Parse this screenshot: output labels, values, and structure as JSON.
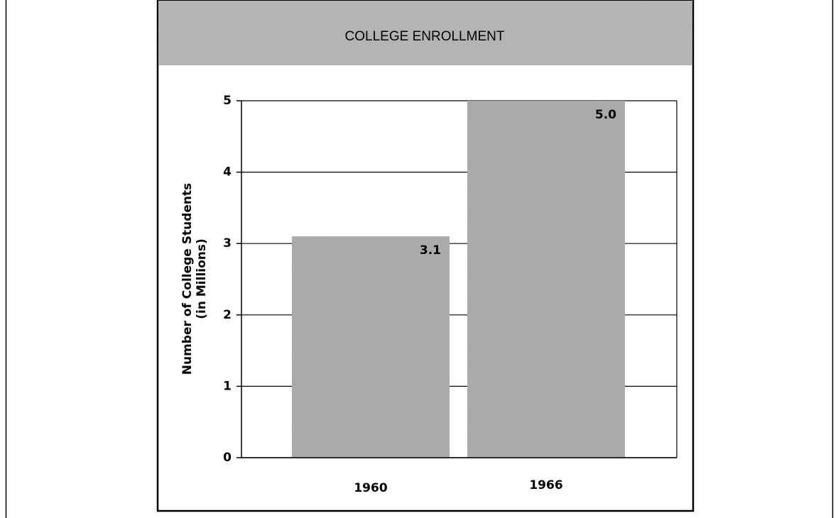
{
  "chart_data": {
    "type": "bar",
    "title": "COLLEGE ENROLLMENT",
    "y_label": [
      "Number of College Students",
      "(in Millions)"
    ],
    "categories": [
      "1960",
      "1966"
    ],
    "values": [
      3.1,
      5.0
    ],
    "value_labels": [
      "3.1",
      "5.0"
    ],
    "color": "#b9b9b9",
    "ylim": [
      0,
      5
    ],
    "yticks": [
      0,
      1,
      2,
      3,
      4,
      5
    ],
    "grid": true
  }
}
